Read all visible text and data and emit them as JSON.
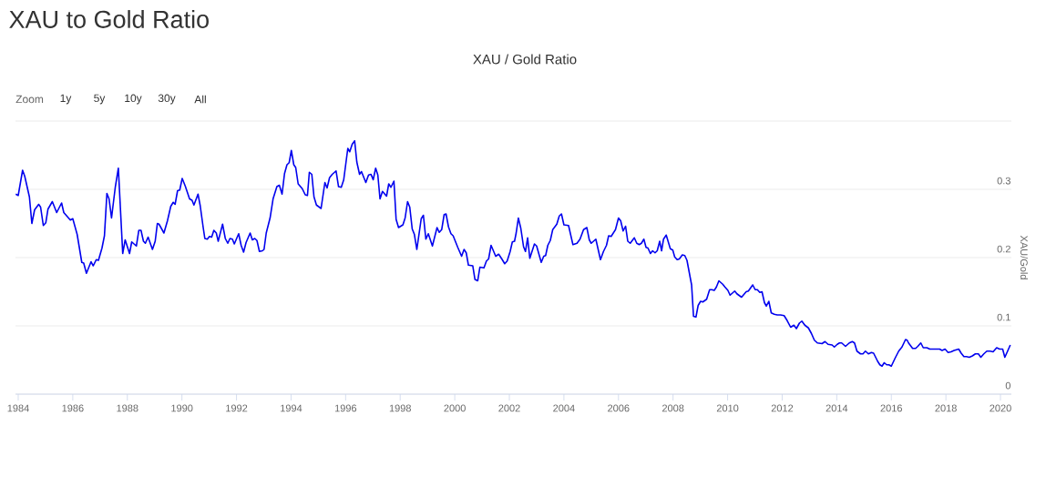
{
  "chart_data": {
    "type": "line",
    "title": "XAU to Gold Ratio",
    "subtitle": "XAU / Gold Ratio",
    "ylabel": "XAU/Gold",
    "annotations": [
      "Zoom",
      "1y",
      "5y",
      "10y",
      "30y",
      "All"
    ],
    "x": [
      1983.91,
      1984.0,
      1984.16,
      1984.24,
      1984.41,
      1984.5,
      1984.6,
      1984.75,
      1984.82,
      1984.92,
      1985.01,
      1985.09,
      1985.25,
      1985.41,
      1985.59,
      1985.67,
      1985.91,
      1986.0,
      1986.16,
      1986.33,
      1986.4,
      1986.5,
      1986.67,
      1986.75,
      1986.86,
      1986.94,
      1987.07,
      1987.16,
      1987.25,
      1987.33,
      1987.42,
      1987.56,
      1987.67,
      1987.83,
      1987.92,
      1988.08,
      1988.16,
      1988.33,
      1988.42,
      1988.5,
      1988.59,
      1988.66,
      1988.76,
      1988.92,
      1989.02,
      1989.1,
      1989.16,
      1989.34,
      1989.47,
      1989.59,
      1989.68,
      1989.75,
      1989.84,
      1989.92,
      1990.01,
      1990.12,
      1990.28,
      1990.37,
      1990.44,
      1990.59,
      1990.67,
      1990.78,
      1990.84,
      1990.93,
      1991.01,
      1991.09,
      1991.17,
      1991.26,
      1991.33,
      1991.49,
      1991.59,
      1991.68,
      1991.76,
      1991.85,
      1991.92,
      1992.08,
      1992.17,
      1992.26,
      1992.35,
      1992.5,
      1992.58,
      1992.67,
      1992.75,
      1992.84,
      1992.95,
      1993.01,
      1993.09,
      1993.23,
      1993.34,
      1993.48,
      1993.57,
      1993.67,
      1993.76,
      1993.85,
      1993.93,
      1994.01,
      1994.1,
      1994.17,
      1994.26,
      1994.41,
      1994.52,
      1994.6,
      1994.67,
      1994.76,
      1994.84,
      1994.93,
      1995.1,
      1995.24,
      1995.32,
      1995.41,
      1995.51,
      1995.65,
      1995.74,
      1995.84,
      1995.93,
      1996.08,
      1996.15,
      1996.24,
      1996.33,
      1996.41,
      1996.51,
      1996.58,
      1996.74,
      1996.84,
      1996.93,
      1997.01,
      1997.1,
      1997.18,
      1997.26,
      1997.35,
      1997.5,
      1997.58,
      1997.66,
      1997.77,
      1997.85,
      1997.94,
      1998.1,
      1998.18,
      1998.27,
      1998.35,
      1998.44,
      1998.52,
      1998.61,
      1998.77,
      1998.85,
      1998.94,
      1999.03,
      1999.18,
      1999.35,
      1999.43,
      1999.52,
      1999.61,
      1999.68,
      1999.77,
      1999.86,
      1999.94,
      2000.11,
      2000.25,
      2000.34,
      2000.42,
      2000.5,
      2000.66,
      2000.74,
      2000.84,
      2000.92,
      2001.07,
      2001.16,
      2001.24,
      2001.33,
      2001.5,
      2001.61,
      2001.74,
      2001.83,
      2001.92,
      2002.03,
      2002.11,
      2002.19,
      2002.25,
      2002.33,
      2002.42,
      2002.52,
      2002.59,
      2002.67,
      2002.75,
      2002.92,
      2003.0,
      2003.17,
      2003.26,
      2003.33,
      2003.41,
      2003.5,
      2003.59,
      2003.74,
      2003.83,
      2003.91,
      2004.0,
      2004.17,
      2004.33,
      2004.48,
      2004.59,
      2004.72,
      2004.84,
      2004.93,
      2005.0,
      2005.17,
      2005.34,
      2005.45,
      2005.56,
      2005.64,
      2005.73,
      2005.89,
      2006.0,
      2006.08,
      2006.17,
      2006.26,
      2006.34,
      2006.43,
      2006.58,
      2006.67,
      2006.76,
      2006.84,
      2006.93,
      2007.01,
      2007.08,
      2007.17,
      2007.25,
      2007.34,
      2007.42,
      2007.51,
      2007.58,
      2007.65,
      2007.75,
      2007.9,
      2007.99,
      2008.06,
      2008.15,
      2008.23,
      2008.34,
      2008.43,
      2008.51,
      2008.68,
      2008.75,
      2008.84,
      2008.92,
      2009.01,
      2009.09,
      2009.23,
      2009.34,
      2009.42,
      2009.51,
      2009.59,
      2009.68,
      2009.82,
      2009.9,
      2010.01,
      2010.09,
      2010.26,
      2010.34,
      2010.51,
      2010.68,
      2010.76,
      2010.92,
      2011.01,
      2011.09,
      2011.18,
      2011.26,
      2011.35,
      2011.42,
      2011.51,
      2011.6,
      2011.71,
      2011.82,
      2011.94,
      2012.07,
      2012.18,
      2012.31,
      2012.43,
      2012.52,
      2012.63,
      2012.72,
      2012.83,
      2012.96,
      2013.07,
      2013.18,
      2013.29,
      2013.46,
      2013.57,
      2013.68,
      2013.83,
      2013.91,
      2014.02,
      2014.1,
      2014.18,
      2014.32,
      2014.46,
      2014.57,
      2014.65,
      2014.74,
      2014.87,
      2014.96,
      2015.05,
      2015.16,
      2015.27,
      2015.35,
      2015.5,
      2015.58,
      2015.66,
      2015.74,
      2015.83,
      2015.91,
      2016.0,
      2016.13,
      2016.27,
      2016.39,
      2016.52,
      2016.58,
      2016.63,
      2016.78,
      2016.89,
      2016.97,
      2017.08,
      2017.17,
      2017.3,
      2017.41,
      2017.56,
      2017.67,
      2017.77,
      2017.86,
      2017.97,
      2018.08,
      2018.19,
      2018.3,
      2018.47,
      2018.56,
      2018.66,
      2018.75,
      2018.86,
      2018.97,
      2019.08,
      2019.19,
      2019.28,
      2019.39,
      2019.5,
      2019.62,
      2019.73,
      2019.86,
      2019.97,
      2020.08,
      2020.16,
      2020.25,
      2020.36
    ],
    "series": [
      {
        "color": "#0000ee",
        "values": [
          0.293,
          0.291,
          0.328,
          0.319,
          0.289,
          0.25,
          0.27,
          0.278,
          0.274,
          0.247,
          0.251,
          0.271,
          0.282,
          0.266,
          0.28,
          0.266,
          0.255,
          0.257,
          0.234,
          0.193,
          0.192,
          0.177,
          0.194,
          0.188,
          0.197,
          0.196,
          0.214,
          0.232,
          0.294,
          0.286,
          0.258,
          0.304,
          0.331,
          0.206,
          0.226,
          0.206,
          0.223,
          0.217,
          0.24,
          0.24,
          0.224,
          0.221,
          0.23,
          0.212,
          0.224,
          0.25,
          0.249,
          0.236,
          0.254,
          0.275,
          0.281,
          0.278,
          0.298,
          0.299,
          0.316,
          0.305,
          0.286,
          0.284,
          0.277,
          0.293,
          0.276,
          0.244,
          0.228,
          0.227,
          0.231,
          0.23,
          0.24,
          0.236,
          0.224,
          0.249,
          0.228,
          0.221,
          0.228,
          0.227,
          0.22,
          0.235,
          0.218,
          0.208,
          0.222,
          0.236,
          0.226,
          0.228,
          0.225,
          0.209,
          0.21,
          0.212,
          0.236,
          0.258,
          0.286,
          0.304,
          0.306,
          0.293,
          0.323,
          0.336,
          0.339,
          0.357,
          0.336,
          0.332,
          0.308,
          0.301,
          0.292,
          0.291,
          0.325,
          0.322,
          0.289,
          0.277,
          0.272,
          0.31,
          0.302,
          0.317,
          0.322,
          0.327,
          0.304,
          0.303,
          0.314,
          0.36,
          0.355,
          0.366,
          0.371,
          0.34,
          0.322,
          0.326,
          0.31,
          0.321,
          0.322,
          0.314,
          0.331,
          0.321,
          0.286,
          0.297,
          0.29,
          0.308,
          0.303,
          0.312,
          0.256,
          0.244,
          0.248,
          0.258,
          0.282,
          0.274,
          0.242,
          0.234,
          0.212,
          0.257,
          0.262,
          0.227,
          0.235,
          0.217,
          0.244,
          0.237,
          0.241,
          0.263,
          0.264,
          0.245,
          0.235,
          0.232,
          0.215,
          0.202,
          0.212,
          0.207,
          0.189,
          0.188,
          0.168,
          0.166,
          0.186,
          0.185,
          0.195,
          0.198,
          0.218,
          0.202,
          0.205,
          0.197,
          0.191,
          0.195,
          0.209,
          0.223,
          0.224,
          0.236,
          0.258,
          0.243,
          0.216,
          0.209,
          0.229,
          0.199,
          0.22,
          0.217,
          0.193,
          0.202,
          0.203,
          0.218,
          0.225,
          0.241,
          0.249,
          0.261,
          0.264,
          0.248,
          0.247,
          0.219,
          0.221,
          0.227,
          0.241,
          0.244,
          0.226,
          0.221,
          0.227,
          0.197,
          0.209,
          0.218,
          0.232,
          0.231,
          0.241,
          0.258,
          0.254,
          0.239,
          0.246,
          0.224,
          0.221,
          0.229,
          0.221,
          0.219,
          0.221,
          0.227,
          0.215,
          0.214,
          0.206,
          0.21,
          0.207,
          0.21,
          0.224,
          0.21,
          0.227,
          0.233,
          0.213,
          0.211,
          0.201,
          0.197,
          0.198,
          0.204,
          0.203,
          0.196,
          0.16,
          0.114,
          0.113,
          0.13,
          0.136,
          0.135,
          0.139,
          0.153,
          0.153,
          0.152,
          0.157,
          0.166,
          0.161,
          0.157,
          0.152,
          0.145,
          0.151,
          0.147,
          0.142,
          0.15,
          0.151,
          0.16,
          0.153,
          0.153,
          0.149,
          0.15,
          0.134,
          0.129,
          0.136,
          0.119,
          0.117,
          0.116,
          0.116,
          0.115,
          0.108,
          0.098,
          0.101,
          0.096,
          0.104,
          0.107,
          0.101,
          0.097,
          0.089,
          0.079,
          0.075,
          0.074,
          0.077,
          0.073,
          0.072,
          0.069,
          0.073,
          0.075,
          0.075,
          0.07,
          0.075,
          0.077,
          0.075,
          0.063,
          0.059,
          0.059,
          0.063,
          0.059,
          0.061,
          0.06,
          0.048,
          0.043,
          0.041,
          0.046,
          0.043,
          0.043,
          0.041,
          0.052,
          0.063,
          0.069,
          0.08,
          0.079,
          0.075,
          0.067,
          0.067,
          0.07,
          0.075,
          0.068,
          0.068,
          0.066,
          0.066,
          0.066,
          0.066,
          0.064,
          0.066,
          0.061,
          0.062,
          0.064,
          0.066,
          0.06,
          0.055,
          0.055,
          0.054,
          0.056,
          0.059,
          0.059,
          0.054,
          0.059,
          0.063,
          0.063,
          0.062,
          0.068,
          0.066,
          0.066,
          0.054,
          0.062,
          0.072
        ]
      }
    ],
    "xlim": [
      1983.9,
      2020.4
    ],
    "xticks": [
      1984,
      1986,
      1988,
      1990,
      1992,
      1994,
      1996,
      1998,
      2000,
      2002,
      2004,
      2006,
      2008,
      2010,
      2012,
      2014,
      2016,
      2018,
      2020
    ],
    "ylim": [
      0,
      0.4
    ],
    "yticks": [
      0,
      0.1,
      0.2,
      0.3,
      {
        "value": 0.4,
        "label": null
      }
    ],
    "grid": "y"
  }
}
